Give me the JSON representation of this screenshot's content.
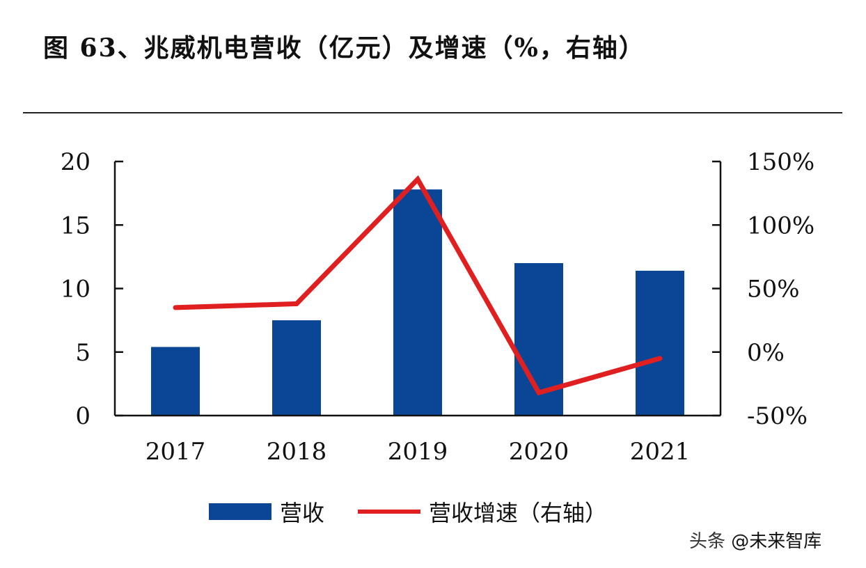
{
  "title": "图 63、兆威机电营收（亿元）及增速（%，右轴）",
  "watermark": {
    "prefix": "头条 ",
    "handle": "@未来智库"
  },
  "colors": {
    "bar": "#0b4696",
    "line": "#e02020",
    "axis": "#111111",
    "text": "#111111"
  },
  "chart_data": {
    "type": "bar",
    "categories": [
      "2017",
      "2018",
      "2019",
      "2020",
      "2021"
    ],
    "series": [
      {
        "name": "营收",
        "type": "bar",
        "axis": "left",
        "values": [
          5.4,
          7.5,
          17.8,
          12.0,
          11.4
        ]
      },
      {
        "name": "营收增速（右轴）",
        "type": "line",
        "axis": "right",
        "values": [
          35,
          38,
          136,
          -32,
          -5
        ]
      }
    ],
    "y_left": {
      "min": 0,
      "max": 20,
      "ticks": [
        0,
        5,
        10,
        15,
        20
      ],
      "tick_labels": [
        "0",
        "5",
        "10",
        "15",
        "20"
      ]
    },
    "y_right": {
      "min": -50,
      "max": 150,
      "ticks": [
        -50,
        0,
        50,
        100,
        150
      ],
      "tick_labels": [
        "-50%",
        "0%",
        "50%",
        "100%",
        "150%"
      ]
    },
    "grid": false,
    "legend": "bottom"
  }
}
